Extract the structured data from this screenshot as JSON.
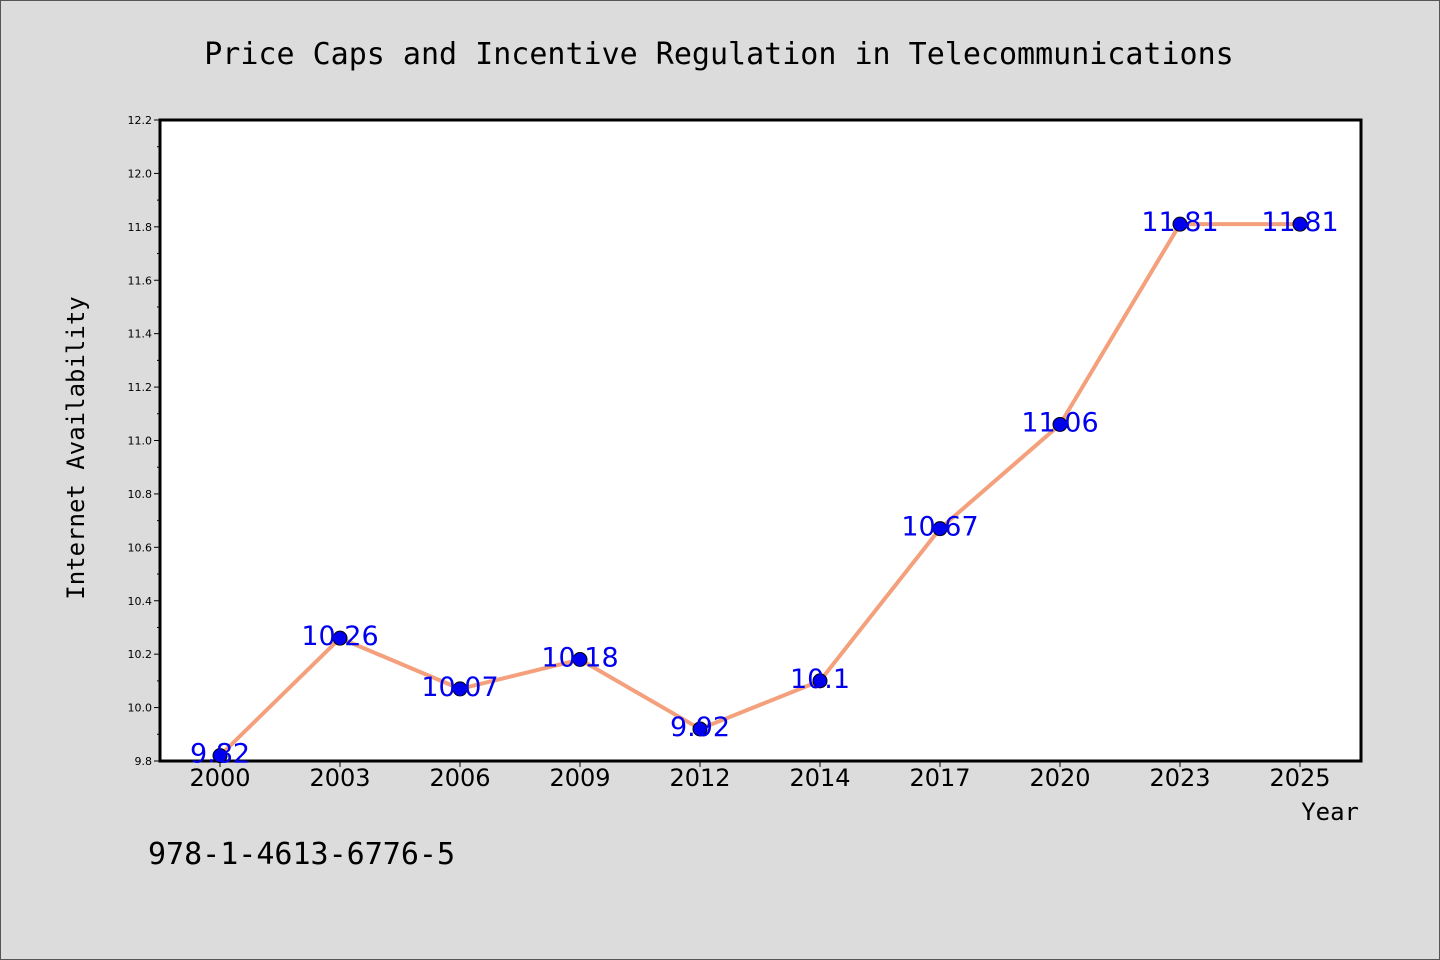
{
  "chart_data": {
    "type": "line",
    "title": "Price Caps and Incentive Regulation in Telecommunications",
    "xlabel": "Year",
    "ylabel": "Internet Availability",
    "categories": [
      "2000",
      "2003",
      "2006",
      "2009",
      "2012",
      "2014",
      "2017",
      "2020",
      "2023",
      "2025"
    ],
    "series": [
      {
        "values": [
          9.82,
          10.26,
          10.07,
          10.18,
          9.92,
          10.1,
          10.67,
          11.06,
          11.81,
          11.81
        ],
        "labels": [
          "9.82",
          "10.26",
          "10.07",
          "10.18",
          "9.92",
          "10.1",
          "10.67",
          "11.06",
          "11.81",
          "11.81"
        ]
      }
    ],
    "ylim": [
      9.8,
      12.2
    ],
    "yticks": [
      "9.8",
      "10.0",
      "10.2",
      "10.4",
      "10.6",
      "10.8",
      "11.0",
      "11.2",
      "11.4",
      "11.6",
      "11.8",
      "12.0",
      "12.2"
    ],
    "grid": false,
    "legend": "none",
    "colors": {
      "line": "#f4a07c",
      "marker": "#0000ee",
      "label": "#0000ee",
      "background": "#dcdcdc",
      "plot_background": "#ffffff"
    }
  },
  "annotation": {
    "isbn": "978-1-4613-6776-5"
  }
}
